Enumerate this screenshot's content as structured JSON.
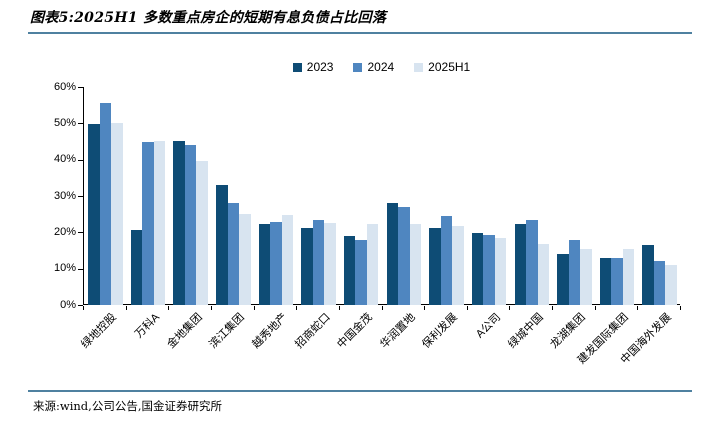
{
  "header": {
    "title": "图表5:2025H1 多数重点房企的短期有息负债占比回落"
  },
  "footer": {
    "source": "来源:wind,公司公告,国金证券研究所"
  },
  "colors": {
    "divider": "#4f81a0",
    "axis": "#000000",
    "series_2023": "#0e4c75",
    "series_2024": "#4f86c0",
    "series_2025H1": "#d8e4f0"
  },
  "chart_data": {
    "type": "bar",
    "title": "2025H1 多数重点房企的短期有息负债占比回落",
    "xlabel": "",
    "ylabel": "",
    "ylim": [
      0,
      60
    ],
    "ytick_step": 10,
    "ytick_suffix": "%",
    "grid": false,
    "legend_position": "top-center",
    "categories": [
      "绿地控股",
      "万科A",
      "金地集团",
      "滨江集团",
      "越秀地产",
      "招商蛇口",
      "中国金茂",
      "华润置地",
      "保利发展",
      "A公司",
      "绿城中国",
      "龙湖集团",
      "建发国际集团",
      "中国海外发展"
    ],
    "series": [
      {
        "name": "2023",
        "color": "#0e4c75",
        "values": [
          49.8,
          20.6,
          45.2,
          33.0,
          22.2,
          21.1,
          19.0,
          28.0,
          21.3,
          19.9,
          22.4,
          14.1,
          12.8,
          16.4
        ]
      },
      {
        "name": "2024",
        "color": "#4f86c0",
        "values": [
          55.6,
          44.8,
          44.0,
          28.0,
          22.8,
          23.5,
          17.8,
          26.9,
          24.6,
          19.3,
          23.3,
          17.8,
          12.8,
          12.0
        ]
      },
      {
        "name": "2025H1",
        "color": "#d8e4f0",
        "values": [
          50.0,
          45.2,
          39.5,
          25.0,
          24.7,
          22.6,
          22.4,
          22.2,
          21.7,
          18.5,
          16.9,
          15.5,
          15.3,
          11.1
        ]
      }
    ]
  }
}
